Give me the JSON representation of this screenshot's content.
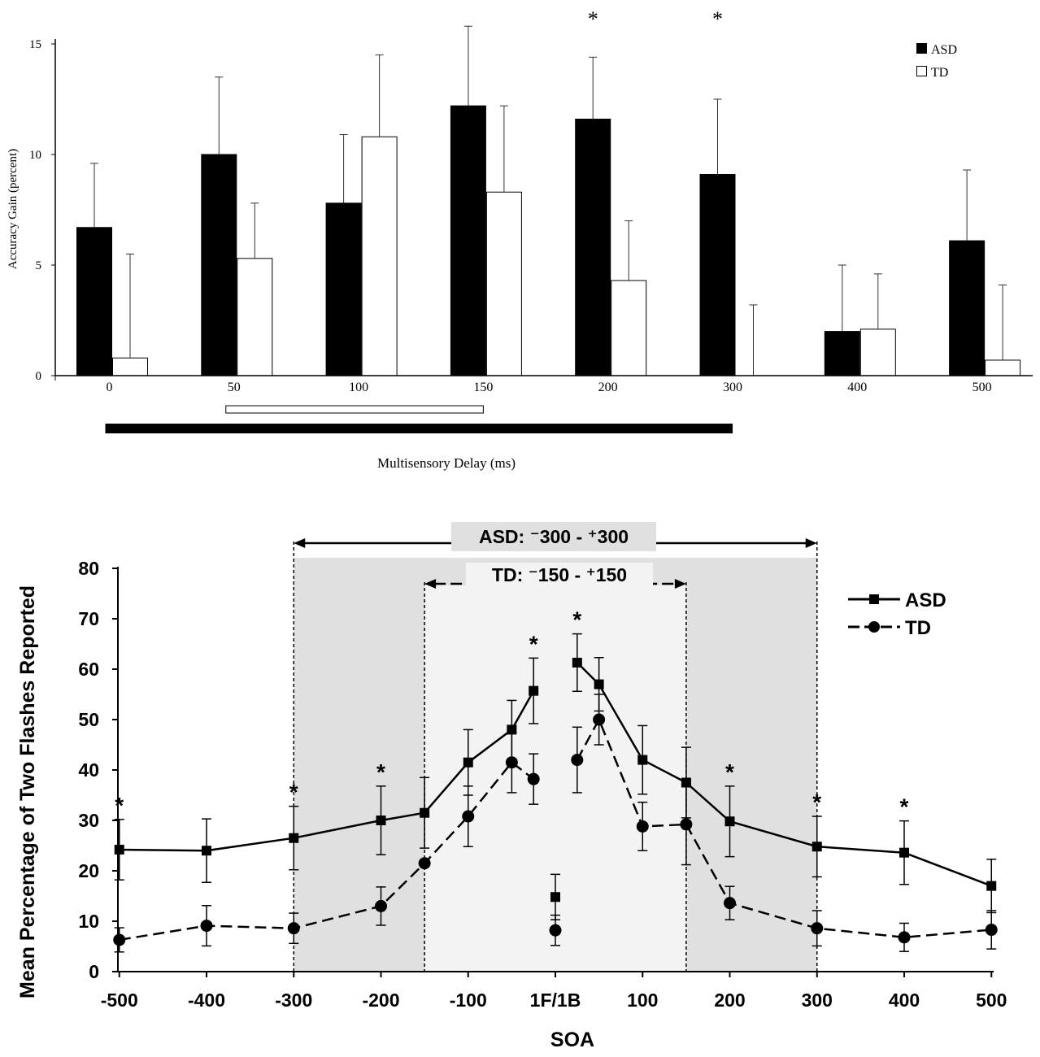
{
  "chart_data": [
    {
      "type": "bar",
      "ylabel": "Accuracy Gain (percent)",
      "xlabel": "Multisensory Delay (ms)",
      "ylim": [
        0,
        15
      ],
      "yticks": [
        "0",
        "5",
        "10",
        "15"
      ],
      "categories": [
        "0",
        "50",
        "100",
        "150",
        "200",
        "300",
        "400",
        "500"
      ],
      "series": [
        {
          "name": "ASD",
          "values": [
            6.7,
            10.0,
            7.8,
            12.2,
            11.6,
            9.1,
            2.0,
            6.1
          ],
          "errors": [
            2.9,
            3.5,
            3.1,
            3.6,
            2.8,
            3.4,
            3.0,
            3.2
          ],
          "fill": "#000000"
        },
        {
          "name": "TD",
          "values": [
            0.8,
            5.3,
            10.8,
            8.3,
            4.3,
            0.0,
            2.1,
            0.7
          ],
          "errors": [
            4.7,
            2.5,
            3.7,
            3.9,
            2.7,
            3.2,
            2.5,
            3.4
          ],
          "fill": "#ffffff"
        }
      ],
      "significance": [
        "",
        "",
        "",
        "",
        "*",
        "*",
        "",
        ""
      ],
      "window_bars": [
        {
          "group": "TD",
          "from": "50",
          "to": "150"
        },
        {
          "group": "ASD",
          "from": "0",
          "to": "300"
        }
      ]
    },
    {
      "type": "line",
      "ylabel": "Mean Percentage of Two Flashes Reported",
      "xlabel": "SOA",
      "ylim": [
        0,
        80
      ],
      "yticks": [
        "0",
        "10",
        "20",
        "30",
        "40",
        "50",
        "60",
        "70",
        "80"
      ],
      "xticks": [
        "-500",
        "-400",
        "-300",
        "-200",
        "-100",
        "1F/1B",
        "100",
        "200",
        "300",
        "400",
        "500"
      ],
      "series": [
        {
          "name": "ASD",
          "marker": "square",
          "line": "solid",
          "segments": [
            {
              "x": [
                -500,
                -400,
                -300,
                -200,
                -150,
                -100,
                -50,
                -25
              ],
              "y": [
                24.2,
                24.0,
                26.5,
                30.0,
                31.5,
                41.5,
                48.0,
                55.7
              ],
              "err": [
                6.0,
                6.3,
                6.3,
                6.8,
                7.0,
                6.5,
                5.8,
                6.5
              ]
            },
            {
              "x": [
                25,
                50,
                100,
                150,
                200,
                300,
                400,
                500
              ],
              "y": [
                61.3,
                57.0,
                42.0,
                37.5,
                29.8,
                24.8,
                23.6,
                17.0
              ],
              "err": [
                5.7,
                5.3,
                6.8,
                7.0,
                7.0,
                6.0,
                6.3,
                5.3
              ]
            }
          ],
          "single": {
            "x": 0,
            "y": 14.8,
            "err": 4.5
          }
        },
        {
          "name": "TD",
          "marker": "circle",
          "line": "dashed",
          "segments": [
            {
              "x": [
                -500,
                -400,
                -300,
                -200,
                -150,
                -100,
                -50,
                -25
              ],
              "y": [
                6.3,
                9.1,
                8.6,
                13.0,
                21.5,
                30.8,
                41.5,
                38.2
              ],
              "err": [
                2.4,
                4.0,
                3.0,
                3.8,
                0.0,
                6.0,
                6.0,
                5.0
              ]
            },
            {
              "x": [
                25,
                50,
                100,
                150,
                200,
                300,
                400,
                500
              ],
              "y": [
                42.0,
                50.0,
                28.8,
                29.2,
                13.6,
                8.6,
                6.8,
                8.3
              ],
              "err": [
                6.5,
                5.0,
                4.8,
                8.0,
                3.3,
                3.5,
                2.8,
                3.8
              ]
            }
          ],
          "single": {
            "x": 0,
            "y": 8.2,
            "err": 3.0
          }
        }
      ],
      "significance_x": [
        -500,
        -300,
        -200,
        -25,
        25,
        200,
        300,
        400
      ],
      "windows": [
        {
          "label": "ASD: ⁻300 - ⁺300",
          "from": -300,
          "to": 300,
          "shade": "#e0e0e0"
        },
        {
          "label": "TD: ⁻150 - ⁺150",
          "from": -150,
          "to": 150,
          "shade": "#f3f3f3"
        }
      ]
    }
  ]
}
